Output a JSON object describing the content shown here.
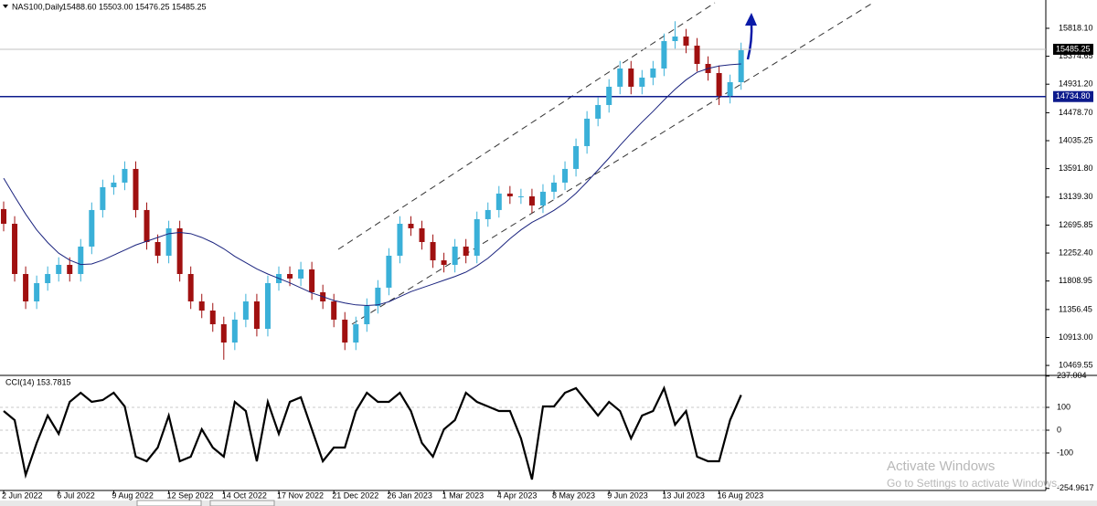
{
  "chart_data": {
    "type": "candlestick",
    "title": "NAS100,Daily",
    "header_values": [
      {
        "value": 15488.6,
        "label": "15488.60"
      },
      {
        "value": 15503,
        "label": "15503.00"
      },
      {
        "value": 15476.25,
        "label": "15476.25"
      },
      {
        "value": 15485.25,
        "label": "15485.25"
      }
    ],
    "categories": [
      "2 Jun 2022",
      null,
      null,
      null,
      null,
      "6 Jul 2022",
      null,
      null,
      null,
      null,
      "9 Aug 2022",
      null,
      null,
      null,
      null,
      "12 Sep 2022",
      null,
      null,
      null,
      null,
      "14 Oct 2022",
      null,
      null,
      null,
      null,
      "17 Nov 2022",
      null,
      null,
      null,
      null,
      "21 Dec 2022",
      null,
      null,
      null,
      null,
      "26 Jan 2023",
      null,
      null,
      null,
      null,
      "1 Mar 2023",
      null,
      null,
      null,
      null,
      "4 Apr 2023",
      null,
      null,
      null,
      null,
      "8 May 2023",
      null,
      null,
      null,
      null,
      "9 Jun 2023",
      null,
      null,
      null,
      null,
      "13 Jul 2023",
      null,
      null,
      null,
      null,
      "16 Aug 2023",
      null,
      null
    ],
    "open": [
      12950,
      12717,
      11920,
      11485,
      11775,
      11920,
      12065,
      11920,
      12355,
      12935,
      13297,
      13370,
      13587,
      12935,
      12427,
      12210,
      12645,
      11920,
      11485,
      11340,
      11123,
      10833,
      11196,
      11485,
      11050,
      11775,
      11920,
      11848,
      11993,
      11630,
      11485,
      11196,
      10833,
      11123,
      11413,
      11703,
      12210,
      12717,
      12645,
      12427,
      12137,
      12065,
      12355,
      12210,
      12790,
      12935,
      13196,
      13152,
      13152,
      13007,
      13225,
      13370,
      13587,
      13949,
      14384,
      14601,
      14891,
      15180,
      14891,
      15036,
      15180,
      15615,
      15688,
      15543,
      15253,
      15108,
      14746,
      14963
    ],
    "high": [
      13070,
      12837,
      12040,
      11895,
      12040,
      12185,
      12185,
      12475,
      13055,
      13417,
      13490,
      13707,
      13707,
      13055,
      12547,
      12765,
      12765,
      12040,
      11605,
      11460,
      11243,
      11316,
      11605,
      11605,
      11895,
      12040,
      12040,
      12113,
      12113,
      11750,
      11605,
      11316,
      11243,
      11533,
      11823,
      12330,
      12837,
      12837,
      12765,
      12547,
      12257,
      12475,
      12475,
      12910,
      13055,
      13316,
      13316,
      13272,
      13272,
      13345,
      13490,
      13707,
      14069,
      14504,
      14721,
      15011,
      15300,
      15300,
      15156,
      15300,
      15735,
      15930,
      15808,
      15663,
      15373,
      15228,
      15083,
      15590
    ],
    "low": [
      12597,
      11800,
      11365,
      11365,
      11655,
      11800,
      11800,
      11800,
      12235,
      12815,
      13177,
      13250,
      12815,
      12307,
      12090,
      12090,
      11800,
      11365,
      11220,
      11003,
      10560,
      10713,
      11076,
      10930,
      10930,
      11655,
      11728,
      11728,
      11510,
      11365,
      11076,
      10713,
      10713,
      11003,
      11293,
      11583,
      12090,
      12525,
      12307,
      12017,
      11945,
      11945,
      12090,
      12090,
      12670,
      12815,
      13032,
      13032,
      12887,
      12887,
      13105,
      13250,
      13467,
      13829,
      14264,
      14481,
      14771,
      14771,
      14771,
      14916,
      15060,
      15495,
      15423,
      15133,
      14988,
      14600,
      14626,
      14843
    ],
    "close": [
      12717,
      11920,
      11485,
      11775,
      11920,
      12065,
      11920,
      12355,
      12935,
      13297,
      13370,
      13587,
      12935,
      12427,
      12210,
      12645,
      11920,
      11485,
      11340,
      11123,
      10833,
      11196,
      11485,
      11050,
      11775,
      11920,
      11848,
      11993,
      11630,
      11485,
      11196,
      10833,
      11123,
      11413,
      11703,
      12210,
      12717,
      12645,
      12427,
      12137,
      12065,
      12355,
      12210,
      12790,
      12935,
      13196,
      13152,
      13152,
      13007,
      13225,
      13370,
      13587,
      13949,
      14384,
      14601,
      14891,
      15180,
      14891,
      15036,
      15180,
      15615,
      15688,
      15543,
      15253,
      15108,
      14746,
      14963,
      15470
    ],
    "ma": [
      13440,
      13150,
      12870,
      12620,
      12420,
      12250,
      12140,
      12070,
      12080,
      12140,
      12220,
      12300,
      12380,
      12440,
      12500,
      12560,
      12580,
      12560,
      12500,
      12420,
      12320,
      12200,
      12100,
      12000,
      11920,
      11850,
      11780,
      11700,
      11620,
      11560,
      11500,
      11460,
      11430,
      11420,
      11430,
      11480,
      11560,
      11640,
      11700,
      11760,
      11820,
      11880,
      11950,
      12050,
      12170,
      12320,
      12480,
      12620,
      12740,
      12830,
      12930,
      13050,
      13200,
      13380,
      13570,
      13760,
      13960,
      14150,
      14330,
      14500,
      14680,
      14850,
      15000,
      15120,
      15180,
      15220,
      15240,
      15253
    ],
    "up_color": "#3ab0d8",
    "down_color": "#a01010",
    "ma_color": "#1a237e",
    "ylim": [
      10326,
      16267
    ],
    "yticks": [
      {
        "value": 15818.1,
        "label": "15818.10"
      },
      15374.65,
      {
        "value": 14931.2,
        "label": "14931.20"
      },
      {
        "value": 14478.7,
        "label": "14478.70"
      },
      14035.25,
      {
        "value": 13591.8,
        "label": "13591.80"
      },
      {
        "value": 13139.3,
        "label": "13139.30"
      },
      12695.85,
      {
        "value": 12252.4,
        "label": "12252.40"
      },
      11808.95,
      11356.45,
      {
        "value": 10913,
        "label": "10913.00"
      },
      10469.55
    ],
    "support": {
      "value": 14734.8,
      "label": "14734.80",
      "color": "#0d1b8c"
    },
    "last_price": {
      "value": 15485.25,
      "label": "15485.25"
    },
    "indicator": {
      "name": "CCI(14)",
      "last": 153.7815,
      "color": "#000000",
      "values": [
        84,
        44,
        -196,
        -56,
        64,
        -16,
        124,
        164,
        124,
        132,
        164,
        104,
        -116,
        -136,
        -76,
        64,
        -136,
        -116,
        4,
        -76,
        -116,
        124,
        84,
        -136,
        124,
        -16,
        124,
        144,
        4,
        -136,
        -76,
        -76,
        84,
        164,
        124,
        124,
        164,
        84,
        -56,
        -116,
        4,
        44,
        164,
        124,
        104,
        84,
        84,
        -36,
        -216,
        104,
        104,
        164,
        184,
        124,
        64,
        124,
        84,
        -36,
        64,
        84,
        184,
        24,
        84,
        -116,
        -136,
        -136,
        44,
        154
      ],
      "ylim": [
        -264,
        236
      ],
      "yticks": [
        237.004,
        100,
        0,
        -100,
        -254.9617
      ]
    },
    "watermark": [
      "Activate Windows",
      "Go to Settings to activate Windows."
    ]
  }
}
